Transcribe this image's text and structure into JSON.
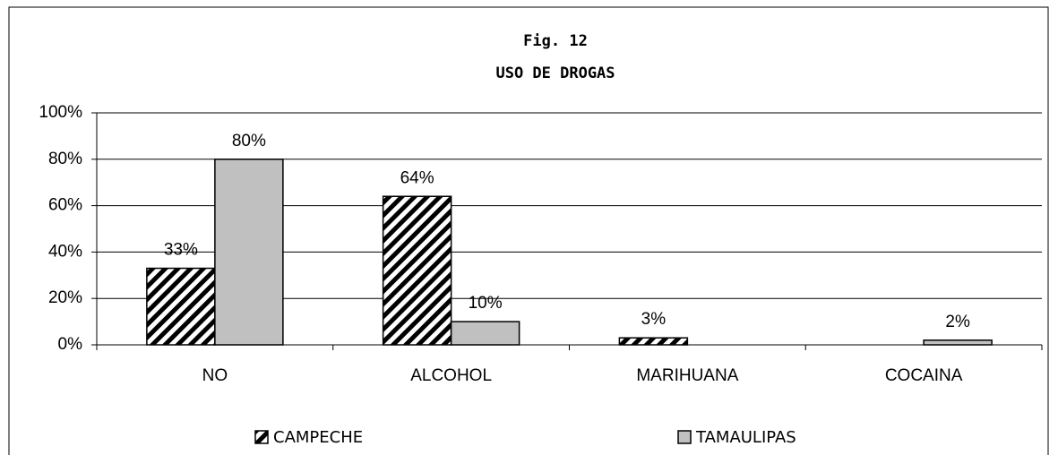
{
  "chart_data": {
    "type": "bar",
    "title": "Fig. 12",
    "subtitle": "USO DE DROGAS",
    "categories": [
      "NO",
      "ALCOHOL",
      "MARIHUANA",
      "COCAINA"
    ],
    "series": [
      {
        "name": "CAMPECHE",
        "color": "#000000",
        "pattern": "hatch",
        "values": [
          33,
          64,
          3,
          0
        ],
        "value_labels": [
          "33%",
          "64%",
          "3%",
          null
        ]
      },
      {
        "name": "TAMAULIPAS",
        "color": "#c0c0c0",
        "values": [
          80,
          10,
          0,
          2
        ],
        "value_labels": [
          "80%",
          "10%",
          null,
          "2%"
        ]
      }
    ],
    "ylim": [
      0,
      100
    ],
    "yticks": [
      {
        "value": 0,
        "label": "0%"
      },
      {
        "value": 20,
        "label": "20%"
      },
      {
        "value": 40,
        "label": "40%"
      },
      {
        "value": 60,
        "label": "60%"
      },
      {
        "value": 80,
        "label": "80%"
      },
      {
        "value": 100,
        "label": "100%"
      }
    ],
    "grid": true,
    "legend": "bottom"
  }
}
